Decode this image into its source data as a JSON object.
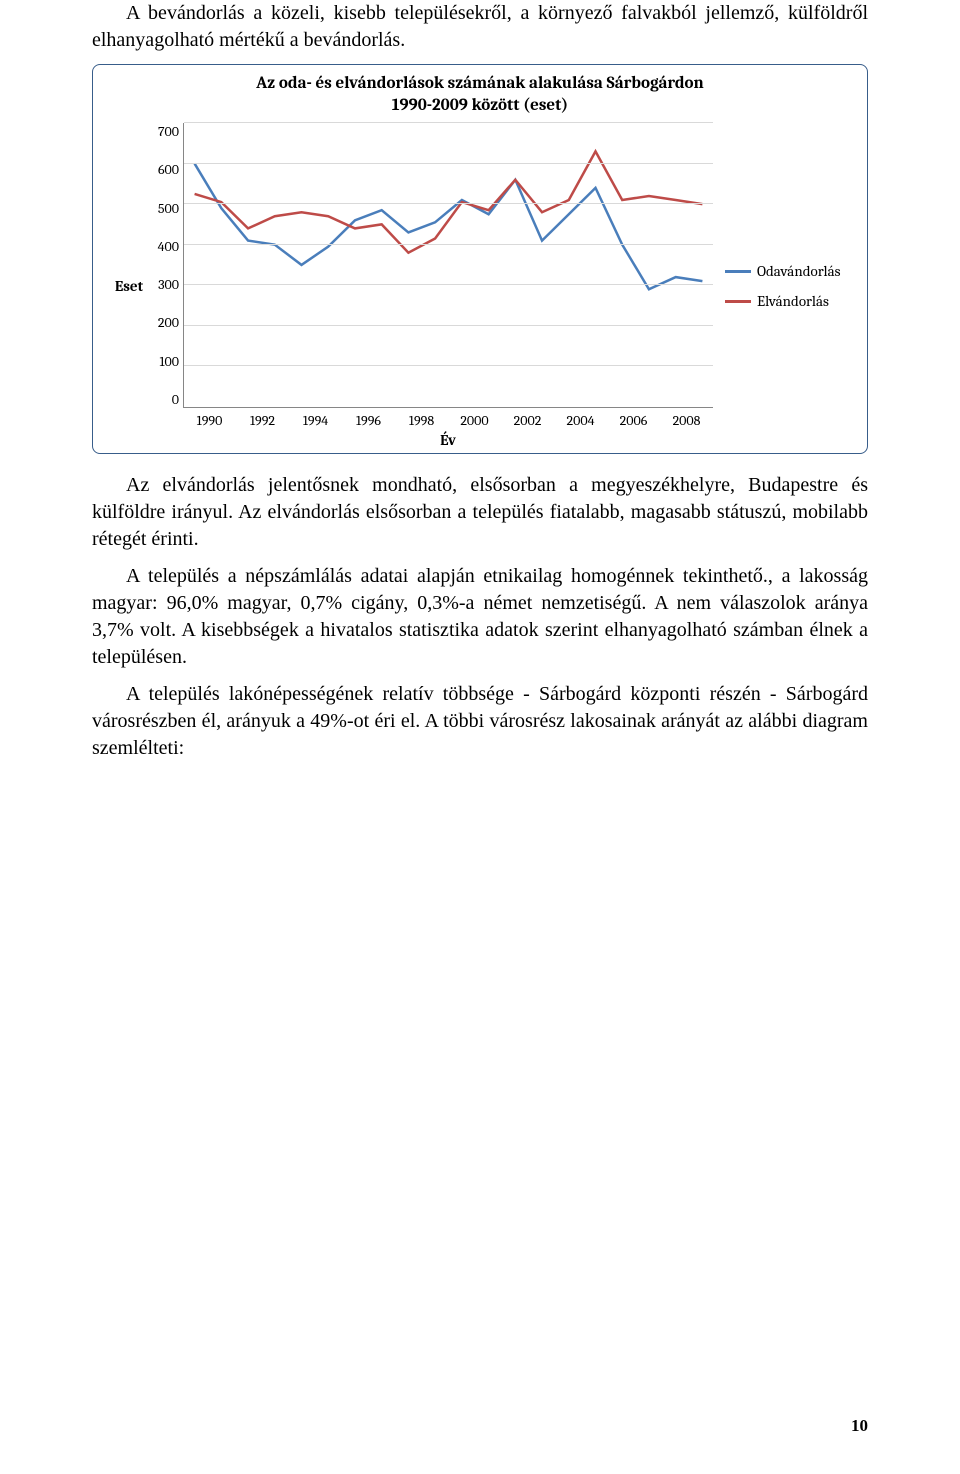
{
  "paragraphs": {
    "p1": "A bevándorlás a közeli, kisebb településekről, a környező falvakból jellemző, külföldről elhanyagolható mértékű a bevándorlás.",
    "p2": "Az elvándorlás jelentősnek mondható, elsősorban a megyeszékhelyre, Budapestre és külföldre irányul.  Az elvándorlás elsősorban a település fiatalabb, magasabb státuszú, mobilabb rétegét érinti.",
    "p3": "A település a népszámlálás adatai alapján etnikailag homogénnek tekinthető., a lakosság magyar: 96,0% magyar, 0,7% cigány,  0,3%-a német nemzetiségű. A nem válaszolok aránya 3,7% volt.  A kisebbségek a hivatalos statisztika adatok szerint elhanyagolható számban élnek a településen.",
    "p4": "A település lakónépességének relatív többsége - Sárbogárd központi részén - Sárbogárd városrészben él, arányuk a 49%-ot éri el. A többi városrész lakosainak arányát az alábbi diagram szemlélteti:"
  },
  "chart": {
    "type": "line",
    "title_line1": "Az oda- és elvándorlások számának alakulása Sárbogárdon",
    "title_line2": "1990-2009 között (eset)",
    "title_fontsize": 17,
    "y_axis_label": "Eset",
    "x_axis_label": "Év",
    "label_fontsize": 15,
    "tick_fontsize": 14,
    "ylim": [
      0,
      700
    ],
    "ytick_step": 100,
    "yticks": [
      "700",
      "600",
      "500",
      "400",
      "300",
      "200",
      "100",
      "0"
    ],
    "x_categories": [
      "1990",
      "1992",
      "1994",
      "1996",
      "1998",
      "2000",
      "2002",
      "2004",
      "2006",
      "2008"
    ],
    "years_all": [
      1990,
      1991,
      1992,
      1993,
      1994,
      1995,
      1996,
      1997,
      1998,
      1999,
      2000,
      2001,
      2002,
      2003,
      2004,
      2005,
      2006,
      2007,
      2008,
      2009
    ],
    "series": {
      "odavandorlas": {
        "label": "Odavándorlás",
        "color": "#4a7ebb",
        "line_width": 2.5,
        "values": [
          600,
          490,
          410,
          400,
          350,
          395,
          460,
          485,
          430,
          455,
          510,
          475,
          560,
          410,
          475,
          540,
          400,
          290,
          320,
          310
        ]
      },
      "elvandorlas": {
        "label": "Elvándorlás",
        "color": "#be4b48",
        "line_width": 2.5,
        "values": [
          525,
          505,
          440,
          470,
          480,
          470,
          440,
          450,
          380,
          415,
          505,
          485,
          560,
          480,
          510,
          630,
          510,
          520,
          510,
          500
        ]
      }
    },
    "background_color": "#ffffff",
    "border_color": "#385d8a",
    "grid_color": "#d9d9d9",
    "axis_color": "#868686"
  },
  "page_number": "10"
}
